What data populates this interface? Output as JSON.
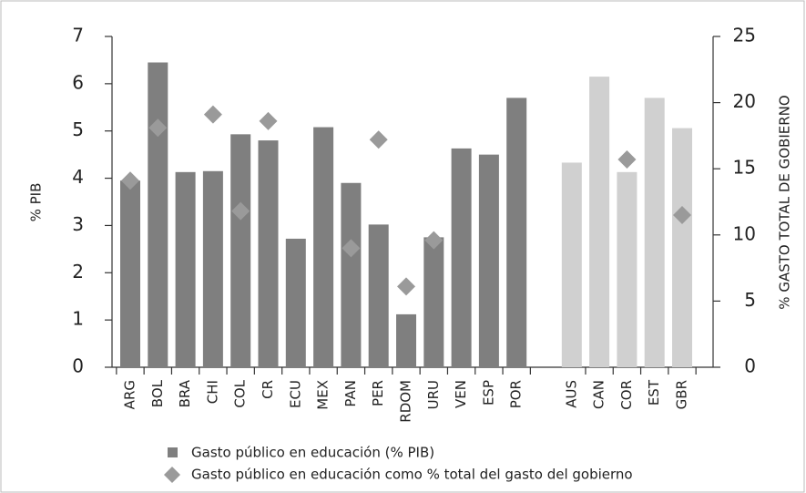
{
  "chart_data": {
    "type": "bar",
    "categories": [
      "ARG",
      "BOL",
      "BRA",
      "CHI",
      "COL",
      "CR",
      "ECU",
      "MEX",
      "PAN",
      "PER",
      "RDOM",
      "URU",
      "VEN",
      "ESP",
      "POR",
      "AUS",
      "CAN",
      "COR",
      "EST",
      "GBR"
    ],
    "series": [
      {
        "name": "Gasto público en educación (% PIB)",
        "type": "bar",
        "color": "#7f7f7f",
        "colors": [
          "#7f7f7f",
          "#7f7f7f",
          "#7f7f7f",
          "#7f7f7f",
          "#7f7f7f",
          "#7f7f7f",
          "#7f7f7f",
          "#7f7f7f",
          "#7f7f7f",
          "#7f7f7f",
          "#7f7f7f",
          "#7f7f7f",
          "#7f7f7f",
          "#7f7f7f",
          "#7f7f7f",
          "#d0d0d0",
          "#d0d0d0",
          "#d0d0d0",
          "#d0d0d0",
          "#d0d0d0"
        ],
        "values": [
          3.95,
          6.45,
          4.13,
          4.15,
          4.93,
          4.8,
          2.72,
          5.08,
          3.9,
          3.02,
          1.12,
          2.75,
          4.63,
          4.5,
          5.7,
          4.33,
          6.15,
          4.13,
          5.7,
          5.06
        ]
      },
      {
        "name": "Gasto público en educación como % total del gasto del gobierno",
        "type": "scatter",
        "axis": "y2",
        "color": "#9a9a9a",
        "values": [
          14.1,
          18.1,
          null,
          19.1,
          11.8,
          18.6,
          null,
          null,
          9.0,
          17.2,
          6.1,
          9.6,
          null,
          null,
          null,
          null,
          null,
          15.7,
          null,
          11.5
        ]
      }
    ],
    "ylabel": "% PIB",
    "y2label": "% GASTO TOTAL DE GOBIERNO",
    "ylim": [
      0,
      7
    ],
    "yticks": [
      0,
      1,
      2,
      3,
      4,
      5,
      6,
      7
    ],
    "y2lim": [
      0,
      25
    ],
    "y2ticks": [
      0,
      5,
      10,
      15,
      20,
      25
    ]
  }
}
